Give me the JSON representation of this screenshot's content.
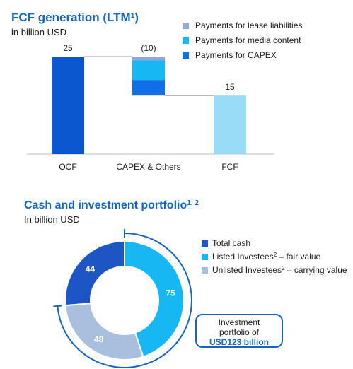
{
  "fcf": {
    "title": "FCF generation (LTM",
    "title_sup": "1",
    "title_close": ")",
    "subtitle": "in billion USD"
  },
  "portfolio": {
    "title": "Cash and investment portfolio",
    "title_sup": "1, 2",
    "subtitle": "In billion USD",
    "box_line1": "Investment",
    "box_line2": "portfolio of",
    "box_line3": "USD123 billion"
  },
  "colors": {
    "ocf": "#0b57d0",
    "lease": "#8fa8e0",
    "media": "#16b8f3",
    "capex": "#0f6fe6",
    "fcf": "#99dcf8",
    "total_cash": "#1e55c4",
    "listed": "#16b8f3",
    "unlisted": "#a8c0de",
    "accent": "#1565c0"
  },
  "chart_data": [
    {
      "type": "bar",
      "subtype": "waterfall",
      "title": "FCF generation (LTM¹)",
      "subtitle": "in billion USD",
      "categories": [
        "OCF",
        "CAPEX & Others",
        "FCF"
      ],
      "value_labels": [
        "25",
        "(10)",
        "15"
      ],
      "bars": [
        {
          "category": "OCF",
          "start": 0,
          "end": 25
        },
        {
          "category": "FCF",
          "start": 0,
          "end": 15
        }
      ],
      "components": [
        {
          "name": "Payments for lease liabilities",
          "value": -1
        },
        {
          "name": "Payments for media content",
          "value": -5
        },
        {
          "name": "Payments for CAPEX",
          "value": -4
        }
      ],
      "legend": [
        "Payments for lease liabilities",
        "Payments for media content",
        "Payments for CAPEX"
      ],
      "legend_position": "top-right",
      "ylim": [
        0,
        35
      ]
    },
    {
      "type": "pie",
      "subtype": "donut",
      "title": "Cash and investment portfolio¹˒²",
      "subtitle": "In billion USD",
      "slices": [
        {
          "label": "Total cash",
          "value": 44
        },
        {
          "label": "Listed Investees² – fair value",
          "value": 75
        },
        {
          "label": "Unlisted Investees² – carrying value",
          "value": 48
        }
      ],
      "legend": [
        {
          "text": "Total cash",
          "sup": "",
          "rest": ""
        },
        {
          "text": "Listed Investees",
          "sup": "2",
          "rest": " – fair value"
        },
        {
          "text": "Unlisted Investees",
          "sup": "2",
          "rest": " – carrying value"
        }
      ],
      "legend_position": "right"
    }
  ]
}
